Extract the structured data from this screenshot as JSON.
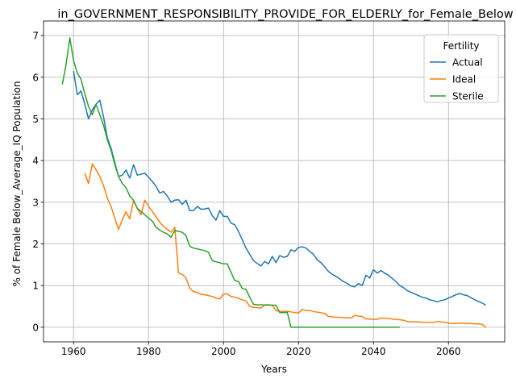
{
  "chart_data": {
    "type": "line",
    "title": "in_GOVERNMENT_RESPONSIBILITY_PROVIDE_FOR_ELDERLY_for_Female_Below",
    "xlabel": "Years",
    "ylabel": "% of Female Below_Average_IQ Population",
    "xlim": [
      1952,
      2075
    ],
    "ylim": [
      -0.35,
      7.35
    ],
    "x_ticks": [
      1960,
      1980,
      2000,
      2020,
      2040,
      2060
    ],
    "y_ticks": [
      0,
      1,
      2,
      3,
      4,
      5,
      6,
      7
    ],
    "grid": true,
    "legend": {
      "title": "Fertility",
      "placement": "top-right"
    },
    "series": [
      {
        "name": "Actual",
        "color": "#1f77b4",
        "points": [
          [
            1960,
            6.15
          ],
          [
            1961,
            5.58
          ],
          [
            1962,
            5.67
          ],
          [
            1963,
            5.35
          ],
          [
            1964,
            5.0
          ],
          [
            1965,
            5.22
          ],
          [
            1966,
            5.35
          ],
          [
            1967,
            5.45
          ],
          [
            1968,
            5.05
          ],
          [
            1969,
            4.55
          ],
          [
            1970,
            4.3
          ],
          [
            1971,
            3.95
          ],
          [
            1972,
            3.62
          ],
          [
            1973,
            3.65
          ],
          [
            1974,
            3.77
          ],
          [
            1975,
            3.58
          ],
          [
            1976,
            3.9
          ],
          [
            1977,
            3.65
          ],
          [
            1978,
            3.67
          ],
          [
            1979,
            3.7
          ],
          [
            1980,
            3.6
          ],
          [
            1981,
            3.5
          ],
          [
            1982,
            3.38
          ],
          [
            1983,
            3.22
          ],
          [
            1984,
            3.26
          ],
          [
            1985,
            3.15
          ],
          [
            1986,
            3.0
          ],
          [
            1987,
            3.05
          ],
          [
            1988,
            3.06
          ],
          [
            1989,
            2.95
          ],
          [
            1990,
            3.05
          ],
          [
            1991,
            2.8
          ],
          [
            1992,
            2.8
          ],
          [
            1993,
            2.9
          ],
          [
            1994,
            2.83
          ],
          [
            1995,
            2.84
          ],
          [
            1996,
            2.86
          ],
          [
            1997,
            2.68
          ],
          [
            1998,
            2.57
          ],
          [
            1999,
            2.8
          ],
          [
            2000,
            2.66
          ],
          [
            2001,
            2.66
          ],
          [
            2002,
            2.5
          ],
          [
            2003,
            2.46
          ],
          [
            2004,
            2.3
          ],
          [
            2005,
            2.1
          ],
          [
            2006,
            1.9
          ],
          [
            2007,
            1.75
          ],
          [
            2008,
            1.6
          ],
          [
            2009,
            1.53
          ],
          [
            2010,
            1.47
          ],
          [
            2011,
            1.58
          ],
          [
            2012,
            1.52
          ],
          [
            2013,
            1.7
          ],
          [
            2014,
            1.55
          ],
          [
            2015,
            1.72
          ],
          [
            2016,
            1.68
          ],
          [
            2017,
            1.7
          ],
          [
            2018,
            1.86
          ],
          [
            2019,
            1.82
          ],
          [
            2020,
            1.92
          ],
          [
            2021,
            1.93
          ],
          [
            2022,
            1.9
          ],
          [
            2023,
            1.82
          ],
          [
            2024,
            1.75
          ],
          [
            2025,
            1.62
          ],
          [
            2026,
            1.55
          ],
          [
            2027,
            1.45
          ],
          [
            2028,
            1.34
          ],
          [
            2029,
            1.27
          ],
          [
            2030,
            1.22
          ],
          [
            2031,
            1.16
          ],
          [
            2032,
            1.1
          ],
          [
            2033,
            1.05
          ],
          [
            2034,
            0.99
          ],
          [
            2035,
            0.97
          ],
          [
            2036,
            1.05
          ],
          [
            2037,
            1.0
          ],
          [
            2038,
            1.25
          ],
          [
            2039,
            1.18
          ],
          [
            2040,
            1.38
          ],
          [
            2041,
            1.3
          ],
          [
            2042,
            1.36
          ],
          [
            2043,
            1.3
          ],
          [
            2044,
            1.25
          ],
          [
            2045,
            1.17
          ],
          [
            2046,
            1.1
          ],
          [
            2047,
            1.0
          ],
          [
            2048,
            0.95
          ],
          [
            2049,
            0.88
          ],
          [
            2050,
            0.84
          ],
          [
            2051,
            0.8
          ],
          [
            2052,
            0.76
          ],
          [
            2053,
            0.72
          ],
          [
            2054,
            0.7
          ],
          [
            2055,
            0.66
          ],
          [
            2056,
            0.64
          ],
          [
            2057,
            0.61
          ],
          [
            2058,
            0.64
          ],
          [
            2059,
            0.66
          ],
          [
            2060,
            0.7
          ],
          [
            2061,
            0.74
          ],
          [
            2062,
            0.78
          ],
          [
            2063,
            0.81
          ],
          [
            2064,
            0.78
          ],
          [
            2065,
            0.76
          ],
          [
            2066,
            0.71
          ],
          [
            2067,
            0.66
          ],
          [
            2068,
            0.62
          ],
          [
            2069,
            0.58
          ],
          [
            2070,
            0.53
          ]
        ]
      },
      {
        "name": "Ideal",
        "color": "#ff7f0e",
        "points": [
          [
            1963,
            3.7
          ],
          [
            1964,
            3.45
          ],
          [
            1965,
            3.92
          ],
          [
            1966,
            3.78
          ],
          [
            1967,
            3.62
          ],
          [
            1968,
            3.4
          ],
          [
            1969,
            3.1
          ],
          [
            1970,
            2.9
          ],
          [
            1971,
            2.62
          ],
          [
            1972,
            2.35
          ],
          [
            1973,
            2.58
          ],
          [
            1974,
            2.77
          ],
          [
            1975,
            2.6
          ],
          [
            1976,
            3.05
          ],
          [
            1977,
            2.85
          ],
          [
            1978,
            2.7
          ],
          [
            1979,
            3.05
          ],
          [
            1980,
            2.9
          ],
          [
            1981,
            2.78
          ],
          [
            1982,
            2.65
          ],
          [
            1983,
            2.52
          ],
          [
            1984,
            2.42
          ],
          [
            1985,
            2.35
          ],
          [
            1986,
            2.28
          ],
          [
            1987,
            2.4
          ],
          [
            1988,
            1.3
          ],
          [
            1989,
            1.27
          ],
          [
            1990,
            1.18
          ],
          [
            1991,
            0.93
          ],
          [
            1992,
            0.86
          ],
          [
            1993,
            0.83
          ],
          [
            1994,
            0.79
          ],
          [
            1995,
            0.78
          ],
          [
            1996,
            0.76
          ],
          [
            1997,
            0.74
          ],
          [
            1998,
            0.7
          ],
          [
            1999,
            0.68
          ],
          [
            2000,
            0.8
          ],
          [
            2001,
            0.8
          ],
          [
            2002,
            0.74
          ],
          [
            2003,
            0.72
          ],
          [
            2004,
            0.69
          ],
          [
            2005,
            0.66
          ],
          [
            2006,
            0.63
          ],
          [
            2007,
            0.5
          ],
          [
            2008,
            0.48
          ],
          [
            2009,
            0.47
          ],
          [
            2010,
            0.46
          ],
          [
            2011,
            0.54
          ],
          [
            2012,
            0.54
          ],
          [
            2013,
            0.53
          ],
          [
            2014,
            0.4
          ],
          [
            2015,
            0.38
          ],
          [
            2016,
            0.38
          ],
          [
            2017,
            0.38
          ],
          [
            2018,
            0.37
          ],
          [
            2019,
            0.35
          ],
          [
            2020,
            0.34
          ],
          [
            2021,
            0.43
          ],
          [
            2022,
            0.4
          ],
          [
            2023,
            0.4
          ],
          [
            2024,
            0.38
          ],
          [
            2025,
            0.36
          ],
          [
            2026,
            0.35
          ],
          [
            2027,
            0.33
          ],
          [
            2028,
            0.26
          ],
          [
            2029,
            0.25
          ],
          [
            2030,
            0.24
          ],
          [
            2031,
            0.24
          ],
          [
            2032,
            0.23
          ],
          [
            2033,
            0.23
          ],
          [
            2034,
            0.22
          ],
          [
            2035,
            0.28
          ],
          [
            2036,
            0.27
          ],
          [
            2037,
            0.26
          ],
          [
            2038,
            0.2
          ],
          [
            2039,
            0.2
          ],
          [
            2040,
            0.19
          ],
          [
            2041,
            0.19
          ],
          [
            2042,
            0.22
          ],
          [
            2043,
            0.22
          ],
          [
            2044,
            0.21
          ],
          [
            2045,
            0.2
          ],
          [
            2046,
            0.19
          ],
          [
            2047,
            0.18
          ],
          [
            2048,
            0.17
          ],
          [
            2049,
            0.14
          ],
          [
            2050,
            0.13
          ],
          [
            2051,
            0.13
          ],
          [
            2052,
            0.13
          ],
          [
            2053,
            0.12
          ],
          [
            2054,
            0.12
          ],
          [
            2055,
            0.12
          ],
          [
            2056,
            0.11
          ],
          [
            2057,
            0.14
          ],
          [
            2058,
            0.13
          ],
          [
            2059,
            0.12
          ],
          [
            2060,
            0.1
          ],
          [
            2061,
            0.09
          ],
          [
            2062,
            0.09
          ],
          [
            2063,
            0.1
          ],
          [
            2064,
            0.1
          ],
          [
            2065,
            0.09
          ],
          [
            2066,
            0.09
          ],
          [
            2067,
            0.08
          ],
          [
            2068,
            0.08
          ],
          [
            2069,
            0.07
          ],
          [
            2070,
            0.0
          ]
        ]
      },
      {
        "name": "Sterile",
        "color": "#2ca02c",
        "points": [
          [
            1957,
            5.83
          ],
          [
            1958,
            6.3
          ],
          [
            1959,
            6.95
          ],
          [
            1960,
            6.4
          ],
          [
            1961,
            6.1
          ],
          [
            1962,
            5.95
          ],
          [
            1963,
            5.6
          ],
          [
            1964,
            5.3
          ],
          [
            1965,
            5.1
          ],
          [
            1966,
            5.35
          ],
          [
            1967,
            5.1
          ],
          [
            1968,
            4.85
          ],
          [
            1969,
            4.5
          ],
          [
            1970,
            4.25
          ],
          [
            1971,
            3.9
          ],
          [
            1972,
            3.62
          ],
          [
            1973,
            3.45
          ],
          [
            1974,
            3.35
          ],
          [
            1975,
            3.15
          ],
          [
            1976,
            3.05
          ],
          [
            1977,
            2.85
          ],
          [
            1978,
            2.78
          ],
          [
            1979,
            2.7
          ],
          [
            1980,
            2.62
          ],
          [
            1981,
            2.55
          ],
          [
            1982,
            2.4
          ],
          [
            1983,
            2.33
          ],
          [
            1984,
            2.28
          ],
          [
            1985,
            2.24
          ],
          [
            1986,
            2.16
          ],
          [
            1987,
            2.32
          ],
          [
            1988,
            2.3
          ],
          [
            1989,
            2.28
          ],
          [
            1990,
            2.2
          ],
          [
            1991,
            1.94
          ],
          [
            1992,
            1.9
          ],
          [
            1993,
            1.88
          ],
          [
            1994,
            1.86
          ],
          [
            1995,
            1.84
          ],
          [
            1996,
            1.8
          ],
          [
            1997,
            1.6
          ],
          [
            1998,
            1.57
          ],
          [
            1999,
            1.55
          ],
          [
            2000,
            1.52
          ],
          [
            2001,
            1.52
          ],
          [
            2002,
            1.32
          ],
          [
            2003,
            1.12
          ],
          [
            2004,
            1.1
          ],
          [
            2005,
            0.93
          ],
          [
            2006,
            0.91
          ],
          [
            2007,
            0.72
          ],
          [
            2008,
            0.55
          ],
          [
            2009,
            0.54
          ],
          [
            2010,
            0.54
          ],
          [
            2011,
            0.53
          ],
          [
            2012,
            0.53
          ],
          [
            2013,
            0.53
          ],
          [
            2014,
            0.53
          ],
          [
            2015,
            0.35
          ],
          [
            2016,
            0.35
          ],
          [
            2017,
            0.36
          ],
          [
            2018,
            0.0
          ],
          [
            2019,
            0.0
          ],
          [
            2020,
            0.0
          ],
          [
            2025,
            0.0
          ],
          [
            2030,
            0.0
          ],
          [
            2035,
            0.0
          ],
          [
            2040,
            0.0
          ],
          [
            2045,
            0.0
          ],
          [
            2047,
            0.0
          ]
        ]
      }
    ]
  }
}
